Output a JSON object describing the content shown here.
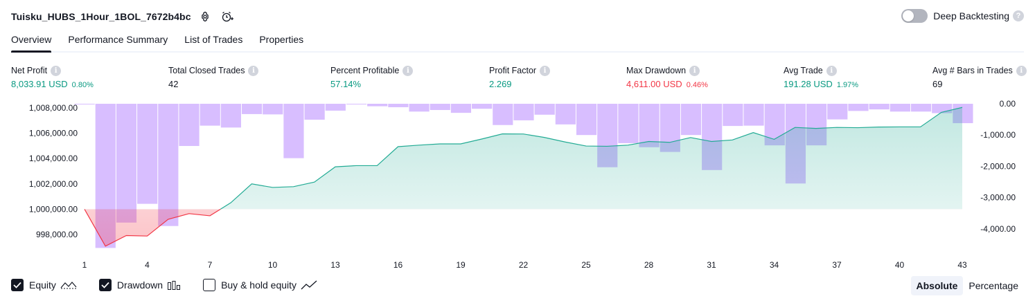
{
  "header": {
    "strategy_title": "Tuisku_HUBS_1Hour_1BOL_7672b4bc",
    "deep_backtesting_label": "Deep Backtesting",
    "deep_backtesting_enabled": false
  },
  "tabs": [
    {
      "label": "Overview",
      "active": true
    },
    {
      "label": "Performance Summary",
      "active": false
    },
    {
      "label": "List of Trades",
      "active": false
    },
    {
      "label": "Properties",
      "active": false
    }
  ],
  "metrics": {
    "net_profit": {
      "label": "Net Profit",
      "value": "8,033.91 USD",
      "pct": "0.80%"
    },
    "total_closed_trades": {
      "label": "Total Closed Trades",
      "value": "42"
    },
    "percent_profitable": {
      "label": "Percent Profitable",
      "value": "57.14%"
    },
    "profit_factor": {
      "label": "Profit Factor",
      "value": "2.269"
    },
    "max_drawdown": {
      "label": "Max Drawdown",
      "value": "4,611.00 USD",
      "pct": "0.46%"
    },
    "avg_trade": {
      "label": "Avg Trade",
      "value": "191.28 USD",
      "pct": "1.97%"
    },
    "avg_bars": {
      "label": "Avg # Bars in Trades",
      "value": "69"
    }
  },
  "colors": {
    "profit_green": "#089981",
    "loss_red": "#f23645",
    "drawdown_bar": "#d1b3ff",
    "equity_line_pos": "#22ab94",
    "equity_line_neg": "#f23645"
  },
  "chart_data": {
    "type": "line",
    "x_ticks": [
      1,
      4,
      7,
      10,
      13,
      16,
      19,
      22,
      25,
      28,
      31,
      34,
      37,
      40,
      43
    ],
    "left_axis": {
      "ticks": [
        "1,008,000.00",
        "1,006,000.00",
        "1,004,000.00",
        "1,002,000.00",
        "1,000,000.00",
        "998,000.00"
      ],
      "tick_values": [
        1008000,
        1006000,
        1004000,
        1002000,
        1000000,
        998000
      ],
      "ylim": [
        997000,
        1008400
      ]
    },
    "right_axis": {
      "ticks": [
        "0.00",
        "-1,000.00",
        "-2,000.00",
        "-3,000.00",
        "-4,000.00"
      ],
      "tick_values": [
        0,
        -1000,
        -2000,
        -3000,
        -4000
      ],
      "ylim": [
        -4600,
        0
      ]
    },
    "baseline": 1000000,
    "series": [
      {
        "name": "Equity",
        "x": [
          1,
          2,
          3,
          4,
          5,
          6,
          7,
          8,
          9,
          10,
          11,
          12,
          13,
          14,
          15,
          16,
          17,
          18,
          19,
          20,
          21,
          22,
          23,
          24,
          25,
          26,
          27,
          28,
          29,
          30,
          31,
          32,
          33,
          34,
          35,
          36,
          37,
          38,
          39,
          40,
          41,
          42,
          43
        ],
        "values": [
          1000000,
          997080,
          997920,
          997880,
          999200,
          999650,
          999480,
          1000510,
          1002000,
          1001720,
          1001780,
          1002140,
          1003350,
          1003440,
          1003440,
          1004940,
          1005060,
          1005160,
          1005160,
          1005540,
          1005950,
          1005940,
          1005670,
          1005310,
          1004990,
          1004970,
          1005060,
          1005350,
          1005280,
          1005660,
          1005350,
          1005470,
          1006050,
          1005520,
          1006460,
          1006380,
          1006460,
          1006440,
          1006490,
          1006500,
          1006500,
          1007650,
          1008040
        ]
      },
      {
        "name": "Drawdown",
        "x": [
          1,
          2,
          3,
          4,
          5,
          6,
          7,
          8,
          9,
          10,
          11,
          12,
          13,
          14,
          15,
          16,
          17,
          18,
          19,
          20,
          21,
          22,
          23,
          24,
          25,
          26,
          27,
          28,
          29,
          30,
          31,
          32,
          33,
          34,
          35,
          36,
          37,
          38,
          39,
          40,
          41,
          42,
          43
        ],
        "values": [
          0,
          -4611,
          -3800,
          -3200,
          -3910,
          -1350,
          -700,
          -760,
          -330,
          -340,
          -1740,
          -510,
          -220,
          0,
          -80,
          -110,
          -250,
          -200,
          -290,
          -160,
          -680,
          -530,
          -350,
          -660,
          -1000,
          -2030,
          -1260,
          -1390,
          -1540,
          -1000,
          -2120,
          -710,
          -700,
          -1330,
          -2550,
          -1330,
          -500,
          -230,
          -180,
          -250,
          -250,
          -300,
          -620
        ]
      }
    ],
    "legend": [
      {
        "label": "Equity",
        "checked": true
      },
      {
        "label": "Drawdown",
        "checked": true
      },
      {
        "label": "Buy & hold equity",
        "checked": false
      }
    ]
  },
  "view_mode": {
    "options": [
      "Absolute",
      "Percentage"
    ],
    "selected": "Absolute"
  }
}
